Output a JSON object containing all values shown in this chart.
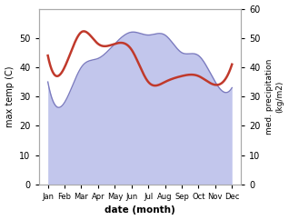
{
  "months": [
    "Jan",
    "Feb",
    "Mar",
    "Apr",
    "May",
    "Jun",
    "Jul",
    "Aug",
    "Sep",
    "Oct",
    "Nov",
    "Dec"
  ],
  "max_temp": [
    44,
    40,
    52,
    48,
    48,
    46,
    35,
    35,
    37,
    37,
    34,
    41
  ],
  "precipitation": [
    35,
    28,
    40,
    43,
    48,
    52,
    51,
    51,
    45,
    44,
    35,
    33
  ],
  "temp_color": "#c0392b",
  "precip_fill_color": "#b3b8e8",
  "precip_line_color": "#7b7bbf",
  "temp_ylim": [
    0,
    60
  ],
  "precip_ylim": [
    0,
    60
  ],
  "temp_yticks": [
    0,
    10,
    20,
    30,
    40,
    50
  ],
  "precip_yticks": [
    0,
    10,
    20,
    30,
    40,
    50,
    60
  ],
  "ylabel_left": "max temp (C)",
  "ylabel_right": "med. precipitation\n(kg/m2)",
  "xlabel": "date (month)",
  "figsize": [
    3.18,
    2.42
  ],
  "dpi": 100
}
